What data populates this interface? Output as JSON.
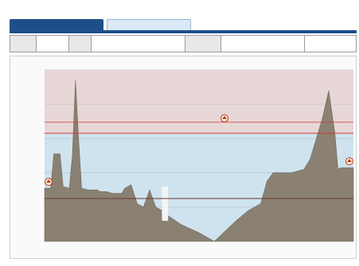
{
  "app": {
    "title": ""
  },
  "tabs": [
    {
      "label": "",
      "active": true
    },
    {
      "label": "",
      "active": false
    }
  ],
  "info_table": {
    "cells": [
      "",
      "",
      "",
      "",
      "",
      "",
      ""
    ]
  },
  "chart_data": {
    "type": "area",
    "title": "",
    "xlabel": "",
    "ylabel": "",
    "level_line_label": "",
    "warning_label": "",
    "lower_line_label": "",
    "left_marker_label": "",
    "right_marker_label": "",
    "footnote_1": "",
    "footnote_2": "",
    "colors": {
      "terrain": "#8a8172",
      "water": "#cfe3ef",
      "sky": "#d9d9d9",
      "upper_band": "#f2d6d6",
      "red_line": "#d23a3a",
      "dark_line": "#6b3a2e"
    },
    "ylim": [
      0,
      10
    ],
    "water_level": 6.3,
    "lower_line_level": 2.5,
    "profile_x": [
      0,
      2,
      3,
      5,
      6,
      8,
      9,
      10,
      11,
      12,
      14,
      16,
      17,
      18,
      19,
      20,
      22,
      24,
      25,
      26,
      28,
      30,
      32,
      34,
      36,
      38,
      40,
      44,
      50,
      55,
      62,
      66,
      70,
      72,
      74,
      78,
      80,
      82,
      84,
      86,
      88,
      90,
      92,
      94,
      95,
      96,
      97,
      98,
      100
    ],
    "profile_y": [
      3.1,
      3.1,
      5.1,
      5.1,
      3.2,
      3.1,
      5.0,
      9.4,
      6.0,
      3.1,
      3.0,
      3.0,
      3.0,
      2.9,
      2.9,
      2.9,
      2.8,
      2.8,
      2.8,
      3.1,
      3.3,
      2.2,
      2.0,
      3.0,
      2.0,
      1.8,
      1.5,
      1.0,
      0.5,
      0.0,
      1.2,
      1.8,
      2.2,
      3.5,
      4.0,
      4.0,
      4.0,
      4.1,
      4.2,
      4.8,
      6.0,
      7.2,
      8.8,
      6.3,
      4.2,
      4.3,
      4.3,
      4.3,
      4.3
    ],
    "pillar_x": [
      38,
      40
    ],
    "pillar_bottom": 1.2,
    "pillar_top": 3.2
  }
}
